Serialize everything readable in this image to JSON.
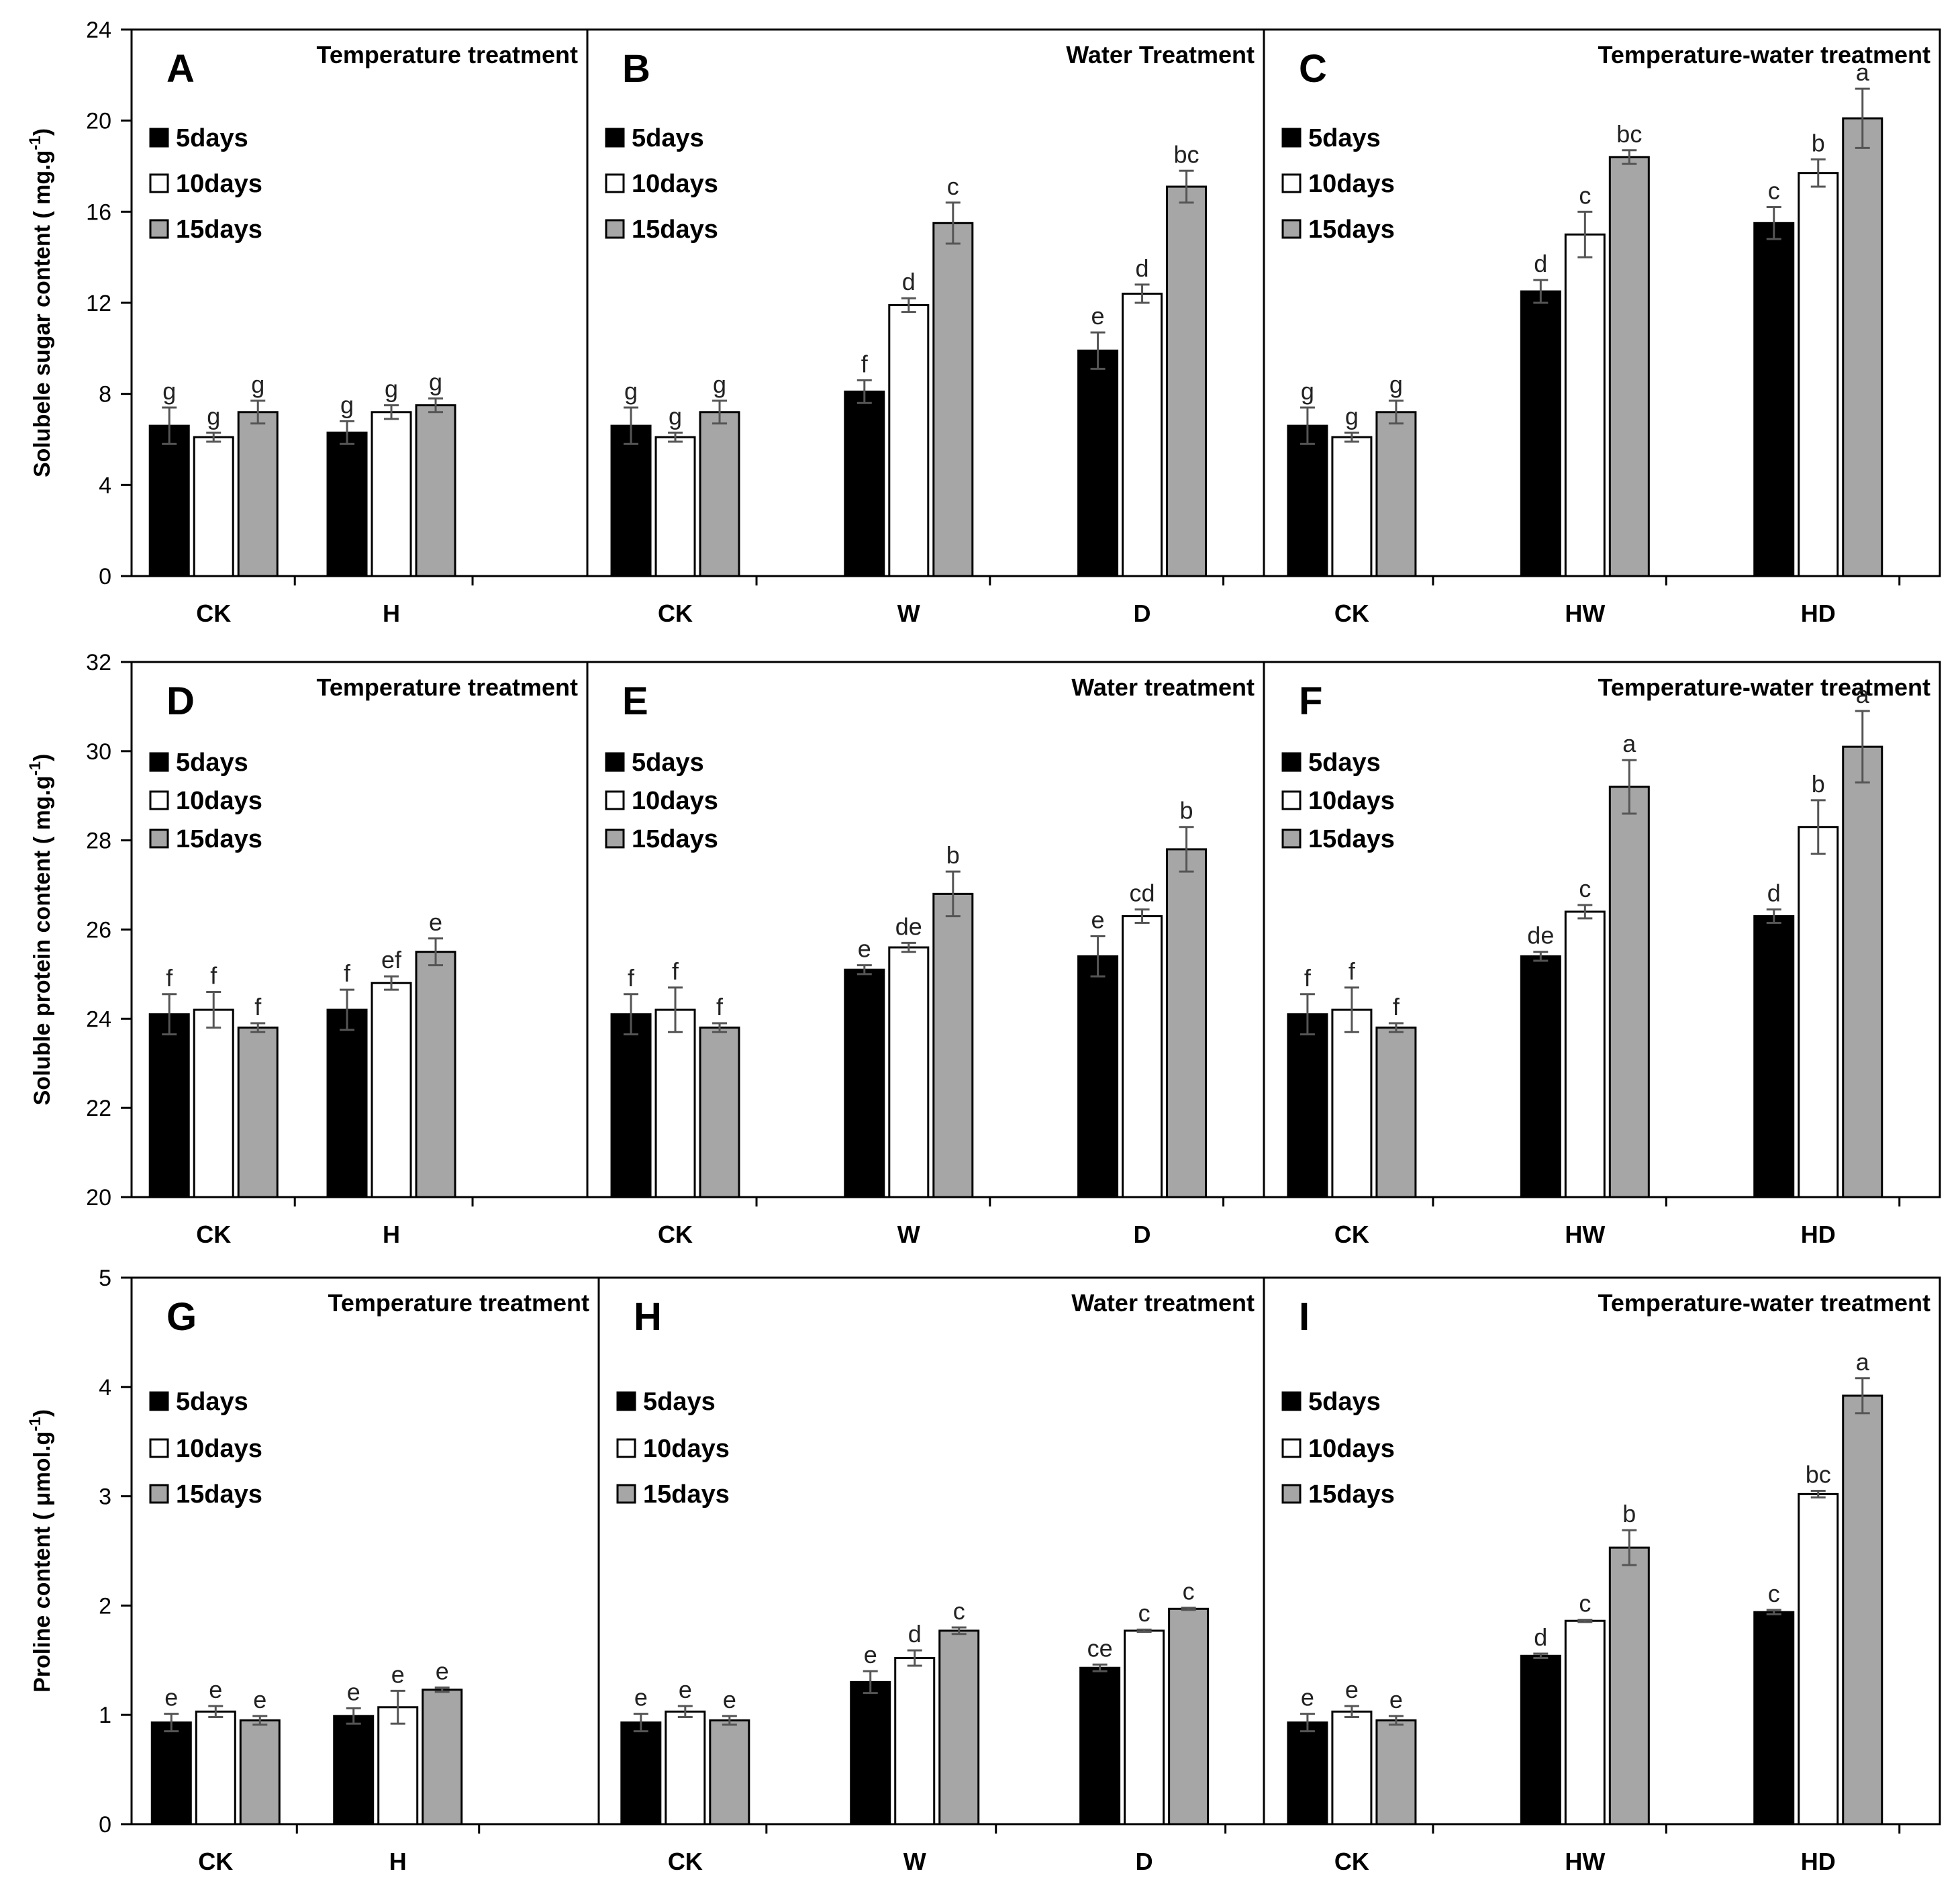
{
  "colors": {
    "5days": "#000000",
    "10days": "#ffffff",
    "15days": "#a6a6a6"
  },
  "legend": [
    "5days",
    "10days",
    "15days"
  ],
  "chart_data": [
    {
      "type": "bar",
      "ylabel": "Solubele sugar content ( mg.g-1)",
      "ylim": [
        0,
        24
      ],
      "yticks": [
        0,
        4,
        8,
        12,
        16,
        20,
        24
      ],
      "panels": [
        {
          "letter": "A",
          "title": "Temperature treatment",
          "categories": [
            "CK",
            "H"
          ],
          "series": [
            {
              "name": "5days",
              "values": [
                6.6,
                6.3
              ],
              "errors": [
                0.8,
                0.5
              ],
              "labels": [
                "g",
                "g"
              ]
            },
            {
              "name": "10days",
              "values": [
                6.1,
                7.2
              ],
              "errors": [
                0.2,
                0.3
              ],
              "labels": [
                "g",
                "g"
              ]
            },
            {
              "name": "15days",
              "values": [
                7.2,
                7.5
              ],
              "errors": [
                0.5,
                0.3
              ],
              "labels": [
                "g",
                "g"
              ]
            }
          ]
        },
        {
          "letter": "B",
          "title": "Water Treatment",
          "categories": [
            "CK",
            "W",
            "D"
          ],
          "series": [
            {
              "name": "5days",
              "values": [
                6.6,
                8.1,
                9.9
              ],
              "errors": [
                0.8,
                0.5,
                0.8
              ],
              "labels": [
                "g",
                "f",
                "e"
              ]
            },
            {
              "name": "10days",
              "values": [
                6.1,
                11.9,
                12.4
              ],
              "errors": [
                0.2,
                0.3,
                0.4
              ],
              "labels": [
                "g",
                "d",
                "d"
              ]
            },
            {
              "name": "15days",
              "values": [
                7.2,
                15.5,
                17.1
              ],
              "errors": [
                0.5,
                0.9,
                0.7
              ],
              "labels": [
                "g",
                "c",
                "bc"
              ]
            }
          ]
        },
        {
          "letter": "C",
          "title": "Temperature-water treatment",
          "categories": [
            "CK",
            "HW",
            "HD"
          ],
          "series": [
            {
              "name": "5days",
              "values": [
                6.6,
                12.5,
                15.5
              ],
              "errors": [
                0.8,
                0.5,
                0.7
              ],
              "labels": [
                "g",
                "d",
                "c"
              ]
            },
            {
              "name": "10days",
              "values": [
                6.1,
                15.0,
                17.7
              ],
              "errors": [
                0.2,
                1.0,
                0.6
              ],
              "labels": [
                "g",
                "c",
                "b"
              ]
            },
            {
              "name": "15days",
              "values": [
                7.2,
                18.4,
                20.1
              ],
              "errors": [
                0.5,
                0.3,
                1.3
              ],
              "labels": [
                "g",
                "bc",
                "a"
              ]
            }
          ]
        }
      ]
    },
    {
      "type": "bar",
      "ylabel": "Soluble protein content ( mg.g-1)",
      "ylim": [
        20,
        32
      ],
      "yticks": [
        20,
        22,
        24,
        26,
        28,
        30,
        32
      ],
      "panels": [
        {
          "letter": "D",
          "title": "Temperature treatment",
          "categories": [
            "CK",
            "H"
          ],
          "series": [
            {
              "name": "5days",
              "values": [
                24.1,
                24.2
              ],
              "errors": [
                0.45,
                0.45
              ],
              "labels": [
                "f",
                "f"
              ]
            },
            {
              "name": "10days",
              "values": [
                24.2,
                24.8
              ],
              "errors": [
                0.4,
                0.15
              ],
              "labels": [
                "f",
                "ef"
              ]
            },
            {
              "name": "15days",
              "values": [
                23.8,
                25.5
              ],
              "errors": [
                0.1,
                0.3
              ],
              "labels": [
                "f",
                "e"
              ]
            }
          ]
        },
        {
          "letter": "E",
          "title": "Water treatment",
          "categories": [
            "CK",
            "W",
            "D"
          ],
          "series": [
            {
              "name": "5days",
              "values": [
                24.1,
                25.1,
                25.4
              ],
              "errors": [
                0.45,
                0.1,
                0.45
              ],
              "labels": [
                "f",
                "e",
                "e"
              ]
            },
            {
              "name": "10days",
              "values": [
                24.2,
                25.6,
                26.3
              ],
              "errors": [
                0.5,
                0.1,
                0.15
              ],
              "labels": [
                "f",
                "de",
                "cd"
              ]
            },
            {
              "name": "15days",
              "values": [
                23.8,
                26.8,
                27.8
              ],
              "errors": [
                0.1,
                0.5,
                0.5
              ],
              "labels": [
                "f",
                "b",
                "b"
              ]
            }
          ]
        },
        {
          "letter": "F",
          "title": "Temperature-water treatment",
          "categories": [
            "CK",
            "HW",
            "HD"
          ],
          "series": [
            {
              "name": "5days",
              "values": [
                24.1,
                25.4,
                26.3
              ],
              "errors": [
                0.45,
                0.1,
                0.15
              ],
              "labels": [
                "f",
                "de",
                "d"
              ]
            },
            {
              "name": "10days",
              "values": [
                24.2,
                26.4,
                28.3
              ],
              "errors": [
                0.5,
                0.15,
                0.6
              ],
              "labels": [
                "f",
                "c",
                "b"
              ]
            },
            {
              "name": "15days",
              "values": [
                23.8,
                29.2,
                30.1
              ],
              "errors": [
                0.1,
                0.6,
                0.8
              ],
              "labels": [
                "f",
                "a",
                "a"
              ]
            }
          ]
        }
      ]
    },
    {
      "type": "bar",
      "ylabel": "Proline content ( μmol.g-1)",
      "ylim": [
        0,
        5
      ],
      "yticks": [
        0,
        1,
        2,
        3,
        4,
        5
      ],
      "panels": [
        {
          "letter": "G",
          "title": "Temperature treatment",
          "categories": [
            "CK",
            "H"
          ],
          "series": [
            {
              "name": "5days",
              "values": [
                0.93,
                0.99
              ],
              "errors": [
                0.08,
                0.07
              ],
              "labels": [
                "e",
                "e"
              ]
            },
            {
              "name": "10days",
              "values": [
                1.03,
                1.07
              ],
              "errors": [
                0.05,
                0.15
              ],
              "labels": [
                "e",
                "e"
              ]
            },
            {
              "name": "15days",
              "values": [
                0.95,
                1.23
              ],
              "errors": [
                0.04,
                0.02
              ],
              "labels": [
                "e",
                "e"
              ]
            }
          ]
        },
        {
          "letter": "H",
          "title": "Water treatment",
          "categories": [
            "CK",
            "W",
            "D"
          ],
          "series": [
            {
              "name": "5days",
              "values": [
                0.93,
                1.3,
                1.43
              ],
              "errors": [
                0.08,
                0.1,
                0.03
              ],
              "labels": [
                "e",
                "e",
                "ce"
              ]
            },
            {
              "name": "10days",
              "values": [
                1.03,
                1.52,
                1.77
              ],
              "errors": [
                0.05,
                0.07,
                0.01
              ],
              "labels": [
                "e",
                "d",
                "c"
              ]
            },
            {
              "name": "15days",
              "values": [
                0.95,
                1.77,
                1.97
              ],
              "errors": [
                0.04,
                0.03,
                0.01
              ],
              "labels": [
                "e",
                "c",
                "c"
              ]
            }
          ]
        },
        {
          "letter": "I",
          "title": "Temperature-water treatment",
          "categories": [
            "CK",
            "HW",
            "HD"
          ],
          "series": [
            {
              "name": "5days",
              "values": [
                0.93,
                1.54,
                1.94
              ],
              "errors": [
                0.08,
                0.02,
                0.02
              ],
              "labels": [
                "e",
                "d",
                "c"
              ]
            },
            {
              "name": "10days",
              "values": [
                1.03,
                1.86,
                3.02
              ],
              "errors": [
                0.05,
                0.01,
                0.03
              ],
              "labels": [
                "e",
                "c",
                "bc"
              ]
            },
            {
              "name": "15days",
              "values": [
                0.95,
                2.53,
                3.92
              ],
              "errors": [
                0.04,
                0.16,
                0.16
              ],
              "labels": [
                "e",
                "b",
                "a"
              ]
            }
          ]
        }
      ]
    }
  ]
}
